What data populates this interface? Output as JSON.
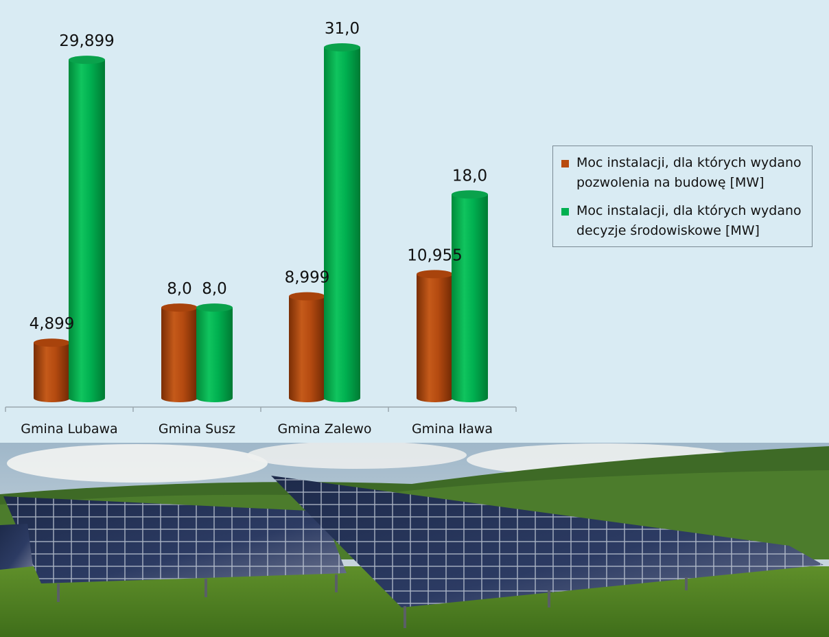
{
  "chart_data": {
    "type": "bar",
    "categories": [
      "Gmina Lubawa",
      "Gmina Susz",
      "Gmina Zalewo",
      "Gmina Iława"
    ],
    "series": [
      {
        "name": "Moc instalacji, dla których wydano pozwolenia na budowę [MW]",
        "values": [
          4.899,
          8.0,
          8.999,
          10.955
        ],
        "labels": [
          "4,899",
          "8,0",
          "8,999",
          "10,955"
        ],
        "color": "#b84a0e"
      },
      {
        "name": "Moc instalacji, dla których wydano decyzje środowiskowe [MW]",
        "values": [
          29.899,
          8.0,
          31.0,
          18.0
        ],
        "labels": [
          "29,899",
          "8,0",
          "31,0",
          "18,0"
        ],
        "color": "#00b050"
      }
    ],
    "ylim": [
      0,
      31
    ],
    "grid": false,
    "legend_position": "right",
    "style": "3d-cylinder"
  },
  "colors": {
    "background": "#d9ebf3",
    "axis": "#9aa7ae"
  },
  "photo": {
    "icon": "solar-panel-field-photo"
  }
}
